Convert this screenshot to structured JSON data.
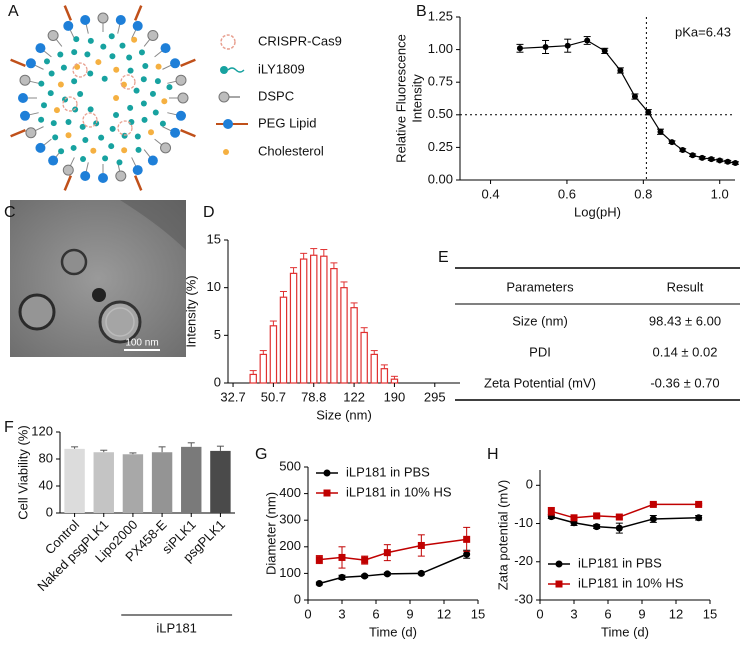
{
  "panels": [
    "A",
    "B",
    "C",
    "D",
    "E",
    "F",
    "G",
    "H"
  ],
  "schematic": {
    "legend": [
      "CRISPR-Cas9",
      "iLY1809",
      "DSPC",
      "PEG Lipid",
      "Cholesterol"
    ]
  },
  "tem": {
    "scale_bar": "100 nm"
  },
  "table": {
    "header": [
      "Parameters",
      "Result"
    ],
    "rows": [
      [
        "Size (nm)",
        "98.43 ± 6.00"
      ],
      [
        "PDI",
        "0.14 ± 0.02"
      ],
      [
        "Zeta Potential (mV)",
        "-0.36 ± 0.70"
      ]
    ]
  },
  "chart_data": [
    {
      "type": "scatter",
      "ylabel": [
        "Relative Fluorescence",
        "Intensity"
      ],
      "xlabel": "Log(pH)",
      "annotation": "pKa=6.43",
      "color": "#000000",
      "x": [
        0.477,
        0.544,
        0.602,
        0.653,
        0.699,
        0.74,
        0.778,
        0.813,
        0.845,
        0.875,
        0.903,
        0.929,
        0.954,
        0.978,
        1.0,
        1.021,
        1.041
      ],
      "values": [
        1.01,
        1.02,
        1.03,
        1.07,
        0.99,
        0.84,
        0.64,
        0.52,
        0.37,
        0.29,
        0.23,
        0.19,
        0.17,
        0.16,
        0.15,
        0.14,
        0.13
      ],
      "errors": [
        0.03,
        0.05,
        0.05,
        0.03,
        0.02,
        0.02,
        0.02,
        0.02,
        0.02,
        0.01,
        0.01,
        0.01,
        0.01,
        0.01,
        0.01,
        0.01,
        0.01
      ],
      "vline": 0.808,
      "hline": 0.5,
      "xlim": [
        0.32,
        1.04
      ],
      "xticks": [
        0.4,
        0.6,
        0.8,
        {
          "value": 1,
          "label": "1.0"
        }
      ],
      "ylim": [
        0,
        1.25
      ],
      "yticks": [
        {
          "value": 0,
          "label": "0.00"
        },
        {
          "value": 0.25,
          "label": "0.25"
        },
        {
          "value": 0.5,
          "label": "0.50"
        },
        {
          "value": 0.75,
          "label": "0.75"
        },
        {
          "value": 1,
          "label": "1.00"
        },
        {
          "value": 1.25,
          "label": "1.25"
        }
      ]
    },
    {
      "type": "bar",
      "ylabel": "Intensity (%)",
      "xlabel": "Size (nm)",
      "color": "#e03030",
      "outline": true,
      "categories": [
        "32.7",
        null,
        null,
        null,
        "50.7",
        null,
        null,
        null,
        "78.8",
        null,
        null,
        null,
        "122",
        null,
        null,
        null,
        "190",
        null,
        null,
        null,
        "295",
        null,
        null
      ],
      "values": [
        0,
        0,
        0.9,
        3.0,
        6.0,
        9.0,
        11.5,
        13.0,
        13.4,
        13.3,
        12.0,
        10.0,
        7.9,
        5.3,
        3.0,
        1.5,
        0.4,
        0,
        0,
        0,
        0,
        0,
        0
      ],
      "errors": [
        0,
        0,
        0.4,
        0.4,
        0.5,
        0.6,
        0.6,
        0.6,
        0.7,
        0.7,
        0.6,
        0.6,
        0.5,
        0.5,
        0.4,
        0.4,
        0.3,
        0,
        0,
        0,
        0,
        0,
        0
      ],
      "ylim": [
        0,
        15
      ],
      "yticks": [
        0,
        5,
        10,
        15
      ]
    },
    {
      "type": "bar",
      "ylabel": "Cell Viability (%)",
      "rotate_labels": true,
      "categories": [
        "Control",
        "Naked psgPLK1",
        "Lipo2000",
        "PX458-E",
        "siPLK1",
        "psgPLK1"
      ],
      "groups": [
        null,
        null,
        "iLP181",
        "iLP181",
        "iLP181",
        "iLP181"
      ],
      "values": [
        95,
        90,
        87,
        90,
        98,
        92
      ],
      "errors": [
        3,
        3,
        2,
        8,
        6,
        7
      ],
      "colors": [
        "#dcdcdc",
        "#c4c4c4",
        "#a8a8a8",
        "#949494",
        "#7a7a7a",
        "#4a4a4a"
      ],
      "ylim": [
        0,
        120
      ],
      "yticks": [
        0,
        40,
        80,
        120
      ]
    },
    {
      "type": "line",
      "ylabel": "Diameter (nm)",
      "xlabel": "Time (d)",
      "legend": "upper left",
      "x": [
        1,
        3,
        5,
        7,
        10,
        14
      ],
      "series": [
        {
          "name": "iLP181 in PBS",
          "color": "#000000",
          "marker": "circle",
          "values": [
            62,
            85,
            90,
            98,
            100,
            172
          ],
          "errors": [
            5,
            8,
            5,
            5,
            5,
            15
          ]
        },
        {
          "name": "iLP181 in 10% HS",
          "color": "#c00000",
          "marker": "square",
          "values": [
            152,
            160,
            150,
            178,
            205,
            228
          ],
          "errors": [
            15,
            40,
            15,
            30,
            40,
            45
          ]
        }
      ],
      "xlim": [
        0,
        15
      ],
      "xticks": [
        0,
        3,
        6,
        9,
        12,
        15
      ],
      "ylim": [
        0,
        500
      ],
      "yticks": [
        0,
        100,
        200,
        300,
        400,
        500
      ]
    },
    {
      "type": "line",
      "ylabel": "Zata potential (mV)",
      "xlabel": "Time (d)",
      "legend": "lower left",
      "x": [
        1,
        3,
        5,
        7,
        10,
        14
      ],
      "series": [
        {
          "name": "iLP181 in PBS",
          "color": "#000000",
          "marker": "circle",
          "values": [
            -8.2,
            -9.8,
            -10.8,
            -11.2,
            -8.8,
            -8.5
          ],
          "errors": [
            0.5,
            0.7,
            0.5,
            1.3,
            0.9,
            0.6
          ]
        },
        {
          "name": "iLP181 in 10% HS",
          "color": "#c00000",
          "marker": "square",
          "values": [
            -6.8,
            -8.5,
            -8,
            -8.3,
            -5,
            -5
          ],
          "errors": [
            1.0,
            0.5,
            0.4,
            0.5,
            0.3,
            0.2
          ]
        }
      ],
      "xlim": [
        0,
        15
      ],
      "xticks": [
        0,
        3,
        6,
        9,
        12,
        15
      ],
      "ylim": [
        -30,
        4
      ],
      "yticks": [
        0,
        -10,
        -20,
        -30
      ]
    }
  ]
}
